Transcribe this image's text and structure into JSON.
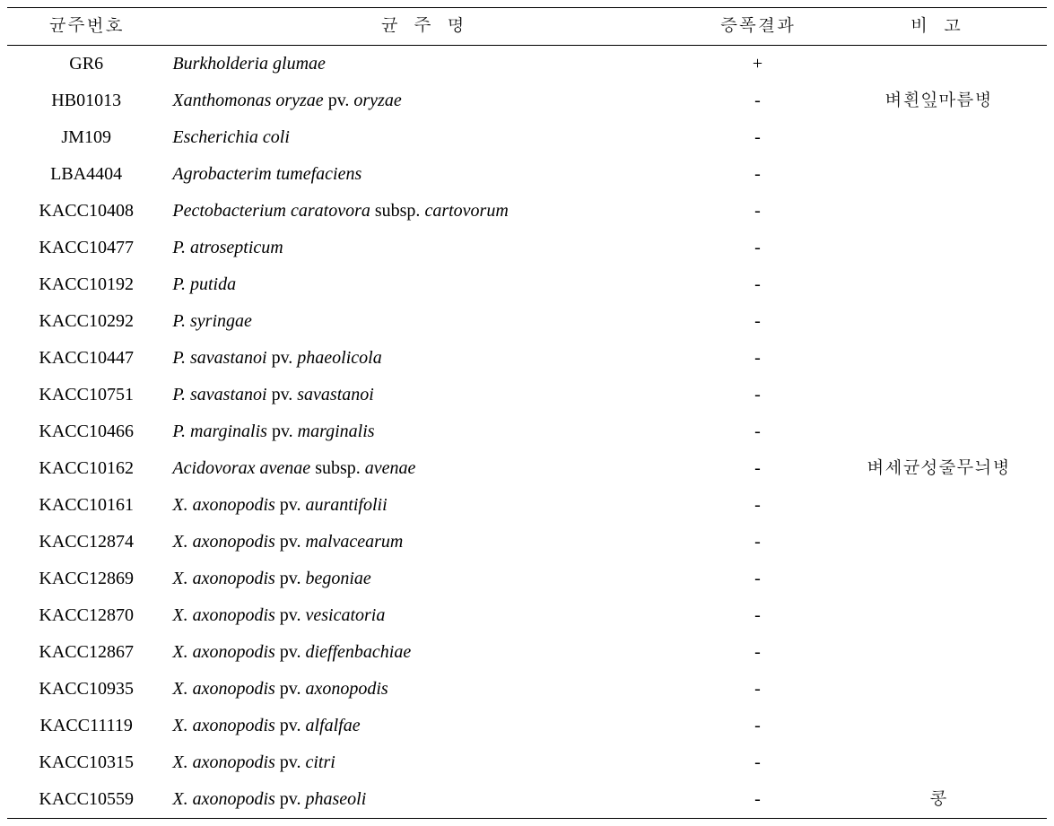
{
  "table": {
    "headers": {
      "strain_id": "균주번호",
      "strain_name": "균 주 명",
      "amplification_result": "증폭결과",
      "note": "비 고"
    },
    "column_widths": {
      "strain_id": 175,
      "strain_name": 575,
      "amplification_result": 160,
      "note": 240
    },
    "rows": [
      {
        "strain_id": "GR6",
        "name_parts": [
          {
            "text": "Burkholderia glumae",
            "italic": true
          }
        ],
        "result": "+",
        "note": ""
      },
      {
        "strain_id": "HB01013",
        "name_parts": [
          {
            "text": "Xanthomonas oryzae",
            "italic": true
          },
          {
            "text": " pv. ",
            "italic": false
          },
          {
            "text": "oryzae",
            "italic": true
          }
        ],
        "result": "-",
        "note": "벼흰잎마름병"
      },
      {
        "strain_id": "JM109",
        "name_parts": [
          {
            "text": "Escherichia coli",
            "italic": true
          }
        ],
        "result": "-",
        "note": ""
      },
      {
        "strain_id": "LBA4404",
        "name_parts": [
          {
            "text": "Agrobacterim tumefaciens",
            "italic": true
          }
        ],
        "result": "-",
        "note": ""
      },
      {
        "strain_id": "KACC10408",
        "name_parts": [
          {
            "text": "Pectobacterium caratovora",
            "italic": true
          },
          {
            "text": " subsp. ",
            "italic": false
          },
          {
            "text": "cartovorum",
            "italic": true
          }
        ],
        "result": "-",
        "note": ""
      },
      {
        "strain_id": "KACC10477",
        "name_parts": [
          {
            "text": "P. atrosepticum",
            "italic": true
          }
        ],
        "result": "-",
        "note": ""
      },
      {
        "strain_id": "KACC10192",
        "name_parts": [
          {
            "text": "P. putida",
            "italic": true
          }
        ],
        "result": "-",
        "note": ""
      },
      {
        "strain_id": "KACC10292",
        "name_parts": [
          {
            "text": "P. syringae",
            "italic": true
          }
        ],
        "result": "-",
        "note": ""
      },
      {
        "strain_id": "KACC10447",
        "name_parts": [
          {
            "text": "P. savastanoi",
            "italic": true
          },
          {
            "text": " pv. ",
            "italic": false
          },
          {
            "text": "phaeolicola",
            "italic": true
          }
        ],
        "result": "-",
        "note": ""
      },
      {
        "strain_id": "KACC10751",
        "name_parts": [
          {
            "text": "P. savastanoi",
            "italic": true
          },
          {
            "text": " pv. ",
            "italic": false
          },
          {
            "text": "savastanoi",
            "italic": true
          }
        ],
        "result": "-",
        "note": ""
      },
      {
        "strain_id": "KACC10466",
        "name_parts": [
          {
            "text": "P. marginalis",
            "italic": true
          },
          {
            "text": " pv. ",
            "italic": false
          },
          {
            "text": "marginalis",
            "italic": true
          }
        ],
        "result": "-",
        "note": ""
      },
      {
        "strain_id": "KACC10162",
        "name_parts": [
          {
            "text": "Acidovorax avenae",
            "italic": true
          },
          {
            "text": " subsp. ",
            "italic": false
          },
          {
            "text": "avenae",
            "italic": true
          }
        ],
        "result": "-",
        "note": "벼세균성줄무늬병"
      },
      {
        "strain_id": "KACC10161",
        "name_parts": [
          {
            "text": "X. axonopodis",
            "italic": true
          },
          {
            "text": " pv. ",
            "italic": false
          },
          {
            "text": "aurantifolii",
            "italic": true
          }
        ],
        "result": "-",
        "note": ""
      },
      {
        "strain_id": "KACC12874",
        "name_parts": [
          {
            "text": "X. axonopodis",
            "italic": true
          },
          {
            "text": " pv. ",
            "italic": false
          },
          {
            "text": "malvacearum",
            "italic": true
          }
        ],
        "result": "-",
        "note": ""
      },
      {
        "strain_id": "KACC12869",
        "name_parts": [
          {
            "text": "X. axonopodis",
            "italic": true
          },
          {
            "text": " pv. ",
            "italic": false
          },
          {
            "text": "begoniae",
            "italic": true
          }
        ],
        "result": "-",
        "note": ""
      },
      {
        "strain_id": "KACC12870",
        "name_parts": [
          {
            "text": "X. axonopodis",
            "italic": true
          },
          {
            "text": " pv. ",
            "italic": false
          },
          {
            "text": "vesicatoria",
            "italic": true
          }
        ],
        "result": "-",
        "note": ""
      },
      {
        "strain_id": "KACC12867",
        "name_parts": [
          {
            "text": "X. axonopodis",
            "italic": true
          },
          {
            "text": " pv. ",
            "italic": false
          },
          {
            "text": "dieffenbachiae",
            "italic": true
          }
        ],
        "result": "-",
        "note": ""
      },
      {
        "strain_id": "KACC10935",
        "name_parts": [
          {
            "text": "X. axonopodis",
            "italic": true
          },
          {
            "text": " pv. ",
            "italic": false
          },
          {
            "text": "axonopodis",
            "italic": true
          }
        ],
        "result": "-",
        "note": ""
      },
      {
        "strain_id": "KACC11119",
        "name_parts": [
          {
            "text": "X. axonopodis",
            "italic": true
          },
          {
            "text": " pv. ",
            "italic": false
          },
          {
            "text": "alfalfae",
            "italic": true
          }
        ],
        "result": "-",
        "note": ""
      },
      {
        "strain_id": "KACC10315",
        "name_parts": [
          {
            "text": "X. axonopodis",
            "italic": true
          },
          {
            "text": " pv. ",
            "italic": false
          },
          {
            "text": "citri",
            "italic": true
          }
        ],
        "result": "-",
        "note": ""
      },
      {
        "strain_id": "KACC10559",
        "name_parts": [
          {
            "text": "X. axonopodis",
            "italic": true
          },
          {
            "text": " pv. ",
            "italic": false
          },
          {
            "text": "phaseoli",
            "italic": true
          }
        ],
        "result": "-",
        "note": "콩"
      }
    ],
    "styling": {
      "border_color": "#000000",
      "header_border_top_width": 1.5,
      "header_border_bottom_width": 1,
      "last_row_border_bottom_width": 1.5,
      "background_color": "#ffffff",
      "font_family": "Times New Roman, Batang, serif",
      "base_fontsize": 20,
      "line_height": 1.65
    }
  }
}
